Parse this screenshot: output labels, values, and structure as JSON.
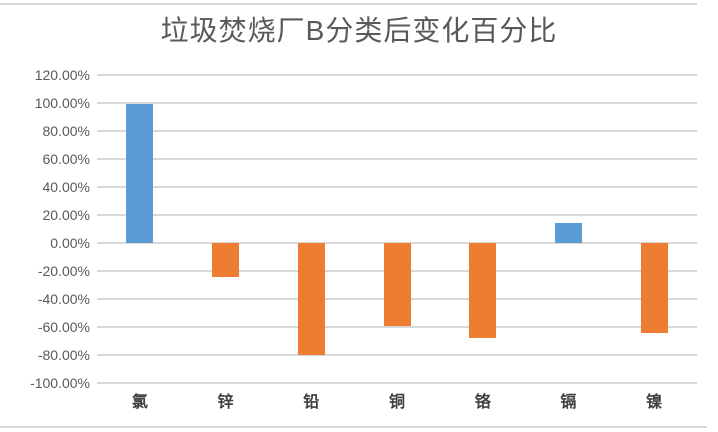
{
  "chart_data": {
    "type": "bar",
    "title": "垃圾焚烧厂B分类后变化百分比",
    "categories": [
      "氯",
      "锌",
      "铅",
      "铜",
      "铬",
      "镉",
      "镍"
    ],
    "values": [
      99,
      -24,
      -80,
      -59,
      -68,
      14,
      -64
    ],
    "unit": "percent",
    "xlabel": "",
    "ylabel": "",
    "ylim": [
      -100,
      120
    ],
    "ytick_step": 20,
    "ytick_labels": [
      "120.00%",
      "100.00%",
      "80.00%",
      "60.00%",
      "40.00%",
      "20.00%",
      "0.00%",
      "-20.00%",
      "-40.00%",
      "-60.00%",
      "-80.00%",
      "-100.00%"
    ],
    "grid": true,
    "legend": "none",
    "positive_color": "#5B9BD5",
    "negative_color": "#ED7D31",
    "gridline_color": "#D9D9D9",
    "axis_label_color": "#595959",
    "category_label_color": "#404040",
    "title_color": "#595959"
  }
}
